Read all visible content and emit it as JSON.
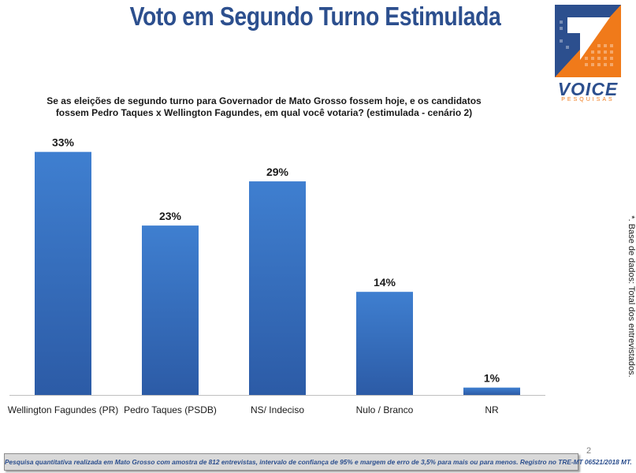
{
  "header": {
    "title": "Voto em Segundo Turno Estimulada"
  },
  "logo": {
    "word": "VOICE",
    "sub": "PESQUISAS",
    "colors": {
      "blue": "#2c4f8e",
      "orange": "#f07a1a"
    }
  },
  "question": {
    "line1": "Se as eleições de segundo turno para Governador de Mato Grosso fossem hoje, e os candidatos",
    "line2": "fossem Pedro Taques x Wellington Fagundes, em qual você votaria? (estimulada - cenário 2)"
  },
  "chart_data": {
    "type": "bar",
    "categories": [
      "Wellington Fagundes (PR)",
      "Pedro Taques (PSDB)",
      "NS/ Indeciso",
      "Nulo / Branco",
      "NR"
    ],
    "values": [
      33,
      23,
      29,
      14,
      1
    ],
    "data_labels": [
      "33%",
      "23%",
      "29%",
      "14%",
      "1%"
    ],
    "ylim": [
      0,
      35
    ],
    "grid": false,
    "legend": "none",
    "bar_color_top": "#3f7fd0",
    "bar_color_bottom": "#2c5ba6"
  },
  "side_note": "*. Base de dados: Total dos entrevistados.",
  "page_number": "2",
  "footer": {
    "text": "Pesquisa quantitativa realizada em Mato Grosso com  amostra de 812 entrevistas, intervalo de confiança de 95% e margem de erro de 3,5% para mais ou para menos. Registro no TRE-MT  06521/2018 MT."
  }
}
